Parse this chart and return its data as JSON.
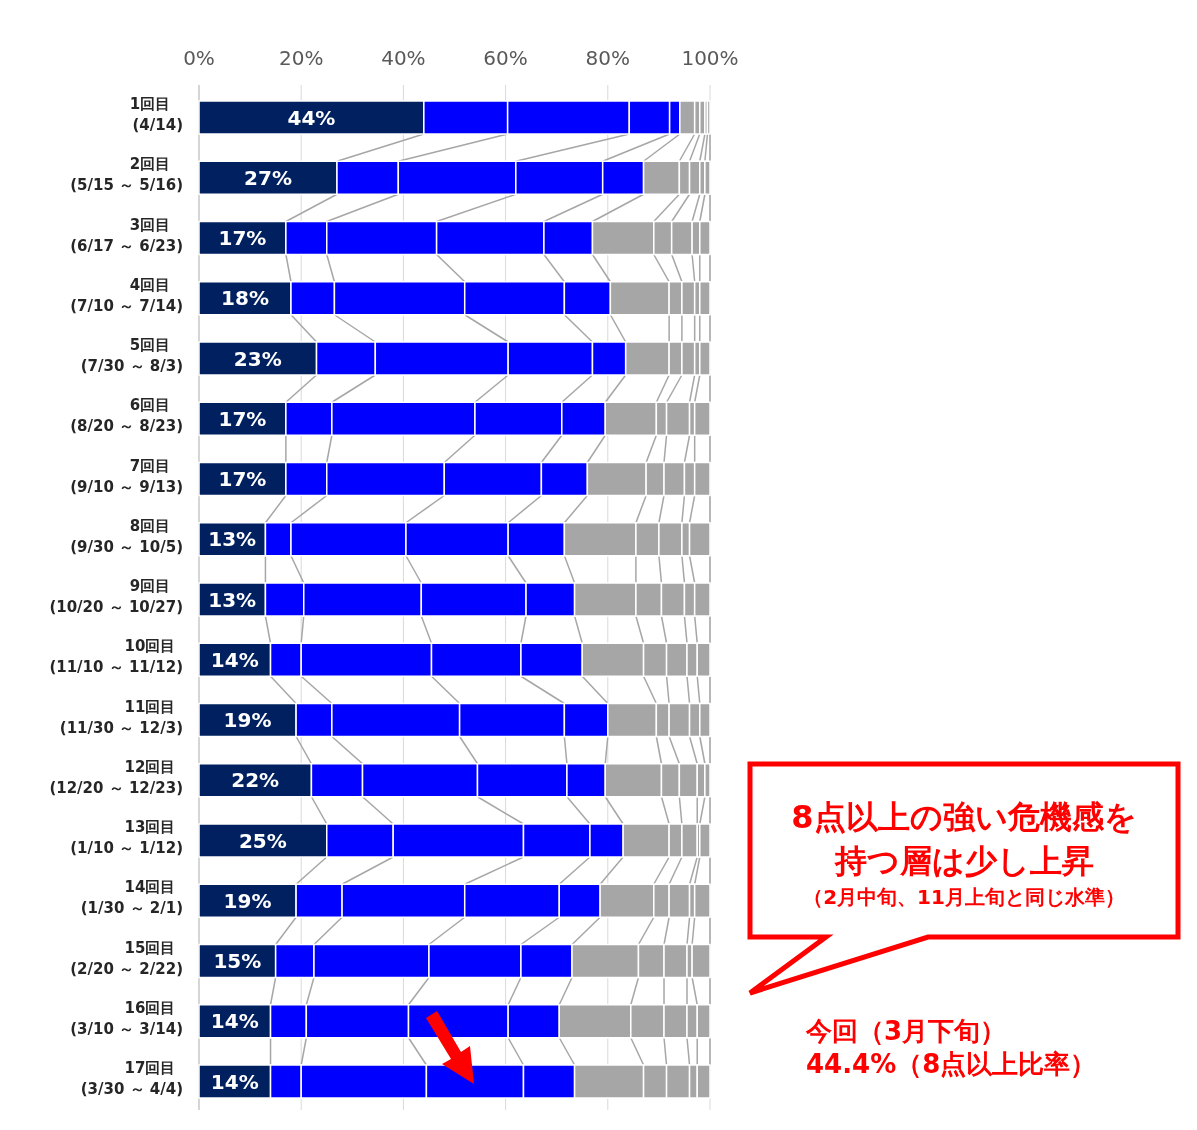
{
  "chart_data": {
    "type": "bar",
    "orientation": "horizontal",
    "stacked": true,
    "categories": [
      "1回目\n(4/14)",
      "2回目\n(5/15 ～ 5/16)",
      "3回目\n(6/17 ～ 6/23)",
      "4回目\n(7/10 ～ 7/14)",
      "5回目\n(7/30 ～ 8/3)",
      "6回目\n(8/20 ～ 8/23)",
      "7回目\n(9/10 ～ 9/13)",
      "8回目\n(9/30 ～ 10/5)",
      "9回目\n(10/20 ～ 10/27)",
      "10回目\n(11/10 ～ 11/12)",
      "11回目\n(11/30 ～ 12/3)",
      "12回目\n(12/20 ～ 12/23)",
      "13回目\n(1/10 ～ 1/12)",
      "14回目\n(1/30 ～ 2/1)",
      "15回目\n(2/20 ～ 2/22)",
      "16回目\n(3/10 ～ 3/14)",
      "17回目\n(3/30 ～ 4/4)"
    ],
    "series": [
      {
        "color": "#002060",
        "values": [
          44,
          27,
          17,
          18,
          23,
          17,
          17,
          13,
          13,
          14,
          19,
          22,
          25,
          19,
          15,
          14,
          14
        ],
        "value_labels": [
          "44%",
          "27%",
          "17%",
          "18%",
          "23%",
          "17%",
          "17%",
          "13%",
          "13%",
          "14%",
          "19%",
          "22%",
          "25%",
          "19%",
          "15%",
          "14%",
          "14%"
        ]
      },
      {
        "color": "#0000ff",
        "values": [
          16.4,
          12,
          8,
          8.5,
          11.5,
          9,
          8,
          5,
          7.5,
          6,
          7,
          10,
          13,
          9,
          7.5,
          7,
          6
        ]
      },
      {
        "color": "#0000ff",
        "values": [
          23.8,
          23,
          21.5,
          25.5,
          26,
          28,
          23,
          22.5,
          23,
          25.5,
          25,
          22.5,
          25.5,
          24,
          22.5,
          20,
          24.5
        ]
      },
      {
        "color": "#0000ff",
        "values": [
          7.9,
          17,
          21,
          19.5,
          16.5,
          17,
          19,
          20,
          20.5,
          17.5,
          20.5,
          17.5,
          13,
          18.5,
          18,
          19.5,
          19
        ]
      },
      {
        "color": "#0000ff",
        "values": [
          2,
          8,
          9.5,
          9,
          6.5,
          8.5,
          9,
          11,
          9.5,
          12,
          8.5,
          7.5,
          6.5,
          8,
          10,
          10,
          10
        ]
      },
      {
        "color": "#a6a6a6",
        "values": [
          2.9,
          7,
          12,
          11.5,
          8.5,
          10,
          11.5,
          14,
          12,
          12,
          9.5,
          11,
          9,
          10.5,
          13,
          14,
          13.5
        ]
      },
      {
        "color": "#a6a6a6",
        "values": [
          1,
          2,
          3.5,
          2.5,
          2.5,
          2,
          3.5,
          4.5,
          5,
          4.5,
          2.5,
          3.5,
          2.5,
          3,
          5,
          6.5,
          4.5
        ]
      },
      {
        "color": "#a6a6a6",
        "values": [
          1,
          2,
          4,
          2.5,
          2.5,
          4.5,
          4,
          4.5,
          4.5,
          4,
          4,
          3.5,
          3,
          4,
          4.5,
          4.5,
          4.5
        ]
      },
      {
        "color": "#a6a6a6",
        "values": [
          0.5,
          1,
          1.5,
          1,
          1,
          1,
          2,
          1.5,
          2,
          2,
          2,
          1.5,
          0.5,
          1,
          1,
          2,
          1.5
        ]
      },
      {
        "color": "#a6a6a6",
        "values": [
          0.5,
          1,
          2,
          2,
          2,
          3,
          3,
          4,
          3,
          2.5,
          2,
          1,
          2,
          3,
          3.5,
          2.5,
          2.5
        ]
      }
    ],
    "xlim": [
      0,
      100
    ],
    "xticks": [
      {
        "value": 0,
        "label": "0%"
      },
      {
        "value": 20,
        "label": "20%"
      },
      {
        "value": 40,
        "label": "40%"
      },
      {
        "value": 60,
        "label": "60%"
      },
      {
        "value": 80,
        "label": "80%"
      },
      {
        "value": 100,
        "label": "100%"
      }
    ],
    "grid": "x",
    "annotations": [
      "8点以上の強い危機感を持つ層は少し上昇",
      "（2月中旬、11月上旬と同じ水準）",
      "今回（3月下旬）44.4%（8点以上比率）"
    ]
  }
}
